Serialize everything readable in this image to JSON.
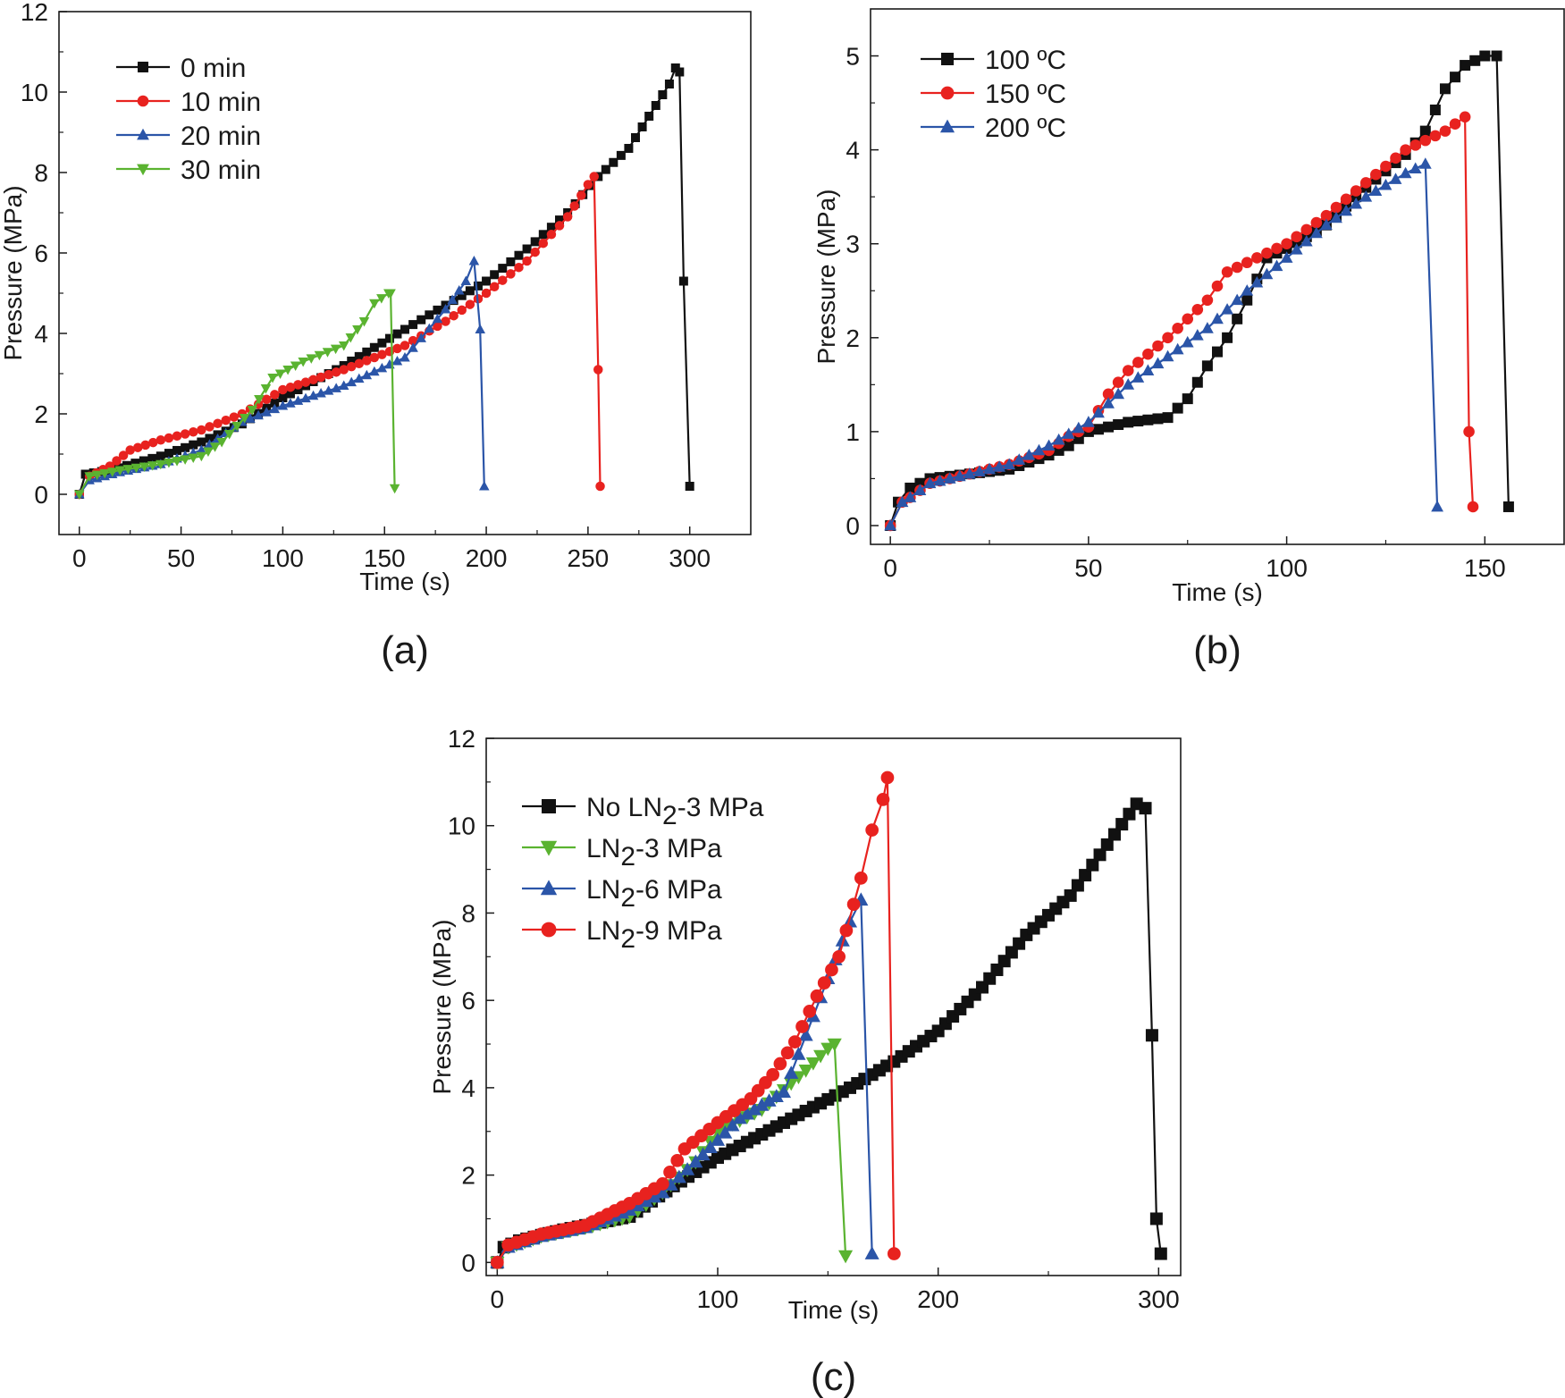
{
  "chart_data": [
    {
      "panel": "a",
      "type": "line",
      "caption": "(a)",
      "xlabel": "Time (s)",
      "ylabel": "Pressure (MPa)",
      "xlim": [
        -10,
        330
      ],
      "ylim": [
        -1,
        12
      ],
      "xticks": [
        0,
        50,
        100,
        150,
        200,
        250,
        300
      ],
      "yticks": [
        0,
        2,
        4,
        6,
        8,
        10,
        12
      ],
      "legend_position": "top-left",
      "series": [
        {
          "name": "0 min",
          "color": "#111111",
          "marker": "square",
          "x": [
            0,
            3,
            15,
            40,
            60,
            80,
            100,
            130,
            160,
            180,
            200,
            220,
            240,
            255,
            270,
            280,
            290,
            293,
            295,
            297,
            300
          ],
          "y": [
            0,
            0.5,
            0.6,
            0.95,
            1.3,
            1.75,
            2.4,
            3.2,
            4.1,
            4.7,
            5.3,
            6.1,
            7.0,
            7.9,
            8.6,
            9.4,
            10.2,
            10.6,
            10.5,
            5.3,
            0.2
          ]
        },
        {
          "name": "10 min",
          "color": "#e8221f",
          "marker": "circle",
          "x": [
            0,
            5,
            15,
            25,
            40,
            60,
            80,
            100,
            130,
            160,
            180,
            200,
            220,
            240,
            250,
            253,
            255,
            256
          ],
          "y": [
            0,
            0.45,
            0.7,
            1.1,
            1.35,
            1.6,
            2.0,
            2.6,
            3.1,
            3.7,
            4.3,
            5.0,
            5.8,
            6.9,
            7.7,
            7.9,
            3.1,
            0.2
          ]
        },
        {
          "name": "20 min",
          "color": "#2b55a8",
          "marker": "triangle-up",
          "x": [
            0,
            5,
            20,
            40,
            60,
            80,
            100,
            130,
            160,
            180,
            190,
            194,
            197,
            199
          ],
          "y": [
            0,
            0.35,
            0.55,
            0.75,
            1.1,
            1.8,
            2.2,
            2.7,
            3.4,
            4.6,
            5.3,
            5.8,
            4.1,
            0.2
          ]
        },
        {
          "name": "30 min",
          "color": "#5ab330",
          "marker": "triangle-down",
          "x": [
            0,
            5,
            20,
            40,
            60,
            70,
            85,
            95,
            110,
            130,
            140,
            145,
            152,
            153,
            155
          ],
          "y": [
            0,
            0.45,
            0.6,
            0.75,
            0.95,
            1.3,
            2.1,
            2.9,
            3.3,
            3.7,
            4.3,
            4.75,
            5.0,
            5.0,
            0.15
          ]
        }
      ]
    },
    {
      "panel": "b",
      "type": "line",
      "caption": "(b)",
      "xlabel": "Time (s)",
      "ylabel": "Pressure (MPa)",
      "xlim": [
        -5,
        170
      ],
      "ylim": [
        -0.2,
        5.5
      ],
      "xticks": [
        0,
        50,
        100,
        150
      ],
      "yticks": [
        0,
        1,
        2,
        3,
        4,
        5
      ],
      "legend_position": "top-left",
      "series": [
        {
          "name": "100 ºC",
          "color": "#111111",
          "marker": "square",
          "x": [
            0,
            2,
            5,
            10,
            20,
            30,
            40,
            45,
            50,
            60,
            70,
            75,
            80,
            85,
            90,
            95,
            100,
            110,
            120,
            130,
            135,
            140,
            145,
            150,
            153,
            156
          ],
          "y": [
            0,
            0.25,
            0.4,
            0.5,
            0.55,
            0.6,
            0.75,
            0.85,
            1.0,
            1.1,
            1.15,
            1.35,
            1.7,
            2.0,
            2.4,
            2.85,
            2.95,
            3.2,
            3.6,
            3.95,
            4.2,
            4.65,
            4.9,
            5.0,
            5.0,
            0.2
          ]
        },
        {
          "name": "150 ºC",
          "color": "#e8221f",
          "marker": "circle",
          "x": [
            0,
            3,
            5,
            10,
            20,
            30,
            40,
            45,
            50,
            55,
            60,
            70,
            80,
            85,
            90,
            100,
            110,
            120,
            130,
            140,
            145,
            146,
            147
          ],
          "y": [
            0,
            0.25,
            0.3,
            0.45,
            0.55,
            0.65,
            0.8,
            0.95,
            1.05,
            1.4,
            1.65,
            2.0,
            2.4,
            2.7,
            2.8,
            3.0,
            3.3,
            3.65,
            4.0,
            4.2,
            4.35,
            1.0,
            0.2
          ]
        },
        {
          "name": "200 ºC",
          "color": "#2b55a8",
          "marker": "triangle-up",
          "x": [
            0,
            3,
            5,
            10,
            20,
            30,
            40,
            50,
            60,
            70,
            80,
            90,
            100,
            110,
            120,
            130,
            135,
            138
          ],
          "y": [
            0,
            0.25,
            0.3,
            0.45,
            0.55,
            0.65,
            0.85,
            1.1,
            1.5,
            1.8,
            2.1,
            2.5,
            2.85,
            3.2,
            3.5,
            3.75,
            3.85,
            0.2
          ]
        }
      ]
    },
    {
      "panel": "c",
      "type": "line",
      "caption": "(c)",
      "xlabel": "Time (s)",
      "ylabel": "Pressure (MPa)",
      "xlim": [
        -5,
        310
      ],
      "ylim": [
        -0.3,
        12
      ],
      "xticks": [
        0,
        100,
        200,
        300
      ],
      "yticks": [
        0,
        2,
        4,
        6,
        8,
        10,
        12
      ],
      "legend_position": "top-left",
      "legend_labels": [
        {
          "pre": "No LN",
          "sub": "2",
          "post": "-3 MPa"
        },
        {
          "pre": "LN",
          "sub": "2",
          "post": "-3 MPa"
        },
        {
          "pre": "LN",
          "sub": "2",
          "post": "-6 MPa"
        },
        {
          "pre": "LN",
          "sub": "2",
          "post": "-9 MPa"
        }
      ],
      "series": [
        {
          "name": "No LN2-3 MPa",
          "color": "#111111",
          "marker": "square",
          "x": [
            0,
            3,
            10,
            30,
            60,
            80,
            100,
            130,
            160,
            180,
            200,
            220,
            240,
            260,
            280,
            290,
            294,
            297,
            299,
            301
          ],
          "y": [
            0,
            0.35,
            0.5,
            0.75,
            1.05,
            1.75,
            2.4,
            3.2,
            4.0,
            4.6,
            5.3,
            6.3,
            7.5,
            8.4,
            9.8,
            10.5,
            10.4,
            5.2,
            1.0,
            0.2
          ]
        },
        {
          "name": "LN2-3 MPa",
          "color": "#5ab330",
          "marker": "triangle-down",
          "x": [
            0,
            5,
            20,
            40,
            60,
            75,
            90,
            100,
            120,
            140,
            150,
            153,
            158
          ],
          "y": [
            0,
            0.35,
            0.6,
            0.8,
            1.05,
            1.6,
            2.3,
            3.0,
            3.5,
            4.4,
            4.9,
            5.0,
            0.15
          ]
        },
        {
          "name": "LN2-6 MPa",
          "color": "#2b55a8",
          "marker": "triangle-up",
          "x": [
            0,
            5,
            20,
            40,
            60,
            75,
            90,
            110,
            130,
            140,
            150,
            160,
            165,
            170
          ],
          "y": [
            0,
            0.35,
            0.6,
            0.8,
            1.2,
            1.6,
            2.3,
            3.3,
            3.9,
            5.2,
            6.5,
            7.8,
            8.3,
            0.2
          ]
        },
        {
          "name": "LN2-9 MPa",
          "color": "#e8221f",
          "marker": "circle",
          "x": [
            0,
            5,
            20,
            40,
            60,
            75,
            85,
            100,
            115,
            125,
            135,
            145,
            155,
            165,
            170,
            175,
            177,
            180
          ],
          "y": [
            0,
            0.4,
            0.65,
            0.85,
            1.35,
            1.8,
            2.6,
            3.2,
            3.75,
            4.3,
            5.05,
            6.1,
            7.0,
            8.8,
            9.9,
            10.6,
            11.1,
            0.2
          ]
        }
      ]
    }
  ]
}
